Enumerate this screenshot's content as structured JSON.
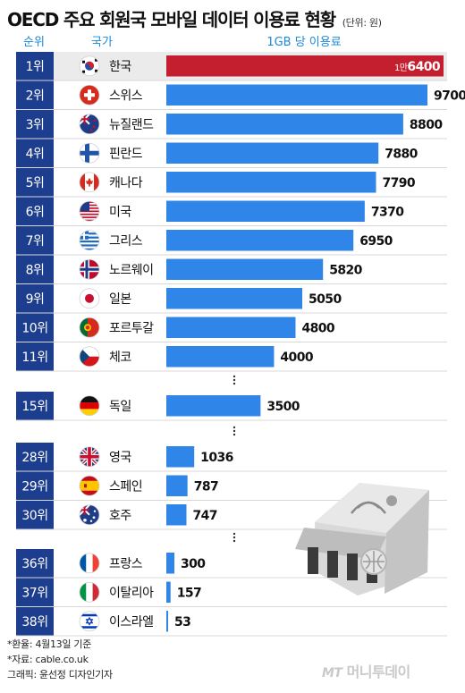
{
  "title": "OECD 주요 회원국 모바일 데이터 이용료 현황",
  "unit_note": "(단위: 원)",
  "headers": {
    "rank": "순위",
    "country": "국가",
    "price": "1GB 당 이용료"
  },
  "chart_data": {
    "type": "bar",
    "orientation": "horizontal",
    "title": "OECD 주요 회원국 모바일 데이터 이용료 현황",
    "value_unit": "원",
    "value_label": "1GB 당 이용료",
    "groups": [
      [
        {
          "rank": "1위",
          "country": "한국",
          "flag": "south-korea-flag",
          "value": 16400,
          "label_prefix": "1만",
          "label_rest": "6400",
          "highlight": true
        },
        {
          "rank": "2위",
          "country": "스위스",
          "flag": "switzerland-flag",
          "value": 9700,
          "label": "9700"
        },
        {
          "rank": "3위",
          "country": "뉴질랜드",
          "flag": "new-zealand-flag",
          "value": 8800,
          "label": "8800"
        },
        {
          "rank": "4위",
          "country": "핀란드",
          "flag": "finland-flag",
          "value": 7880,
          "label": "7880"
        },
        {
          "rank": "5위",
          "country": "캐나다",
          "flag": "canada-flag",
          "value": 7790,
          "label": "7790"
        },
        {
          "rank": "6위",
          "country": "미국",
          "flag": "usa-flag",
          "value": 7370,
          "label": "7370"
        },
        {
          "rank": "7위",
          "country": "그리스",
          "flag": "greece-flag",
          "value": 6950,
          "label": "6950"
        },
        {
          "rank": "8위",
          "country": "노르웨이",
          "flag": "norway-flag",
          "value": 5820,
          "label": "5820"
        },
        {
          "rank": "9위",
          "country": "일본",
          "flag": "japan-flag",
          "value": 5050,
          "label": "5050"
        },
        {
          "rank": "10위",
          "country": "포르투갈",
          "flag": "portugal-flag",
          "value": 4800,
          "label": "4800"
        },
        {
          "rank": "11위",
          "country": "체코",
          "flag": "czech-flag",
          "value": 4000,
          "label": "4000"
        }
      ],
      [
        {
          "rank": "15위",
          "country": "독일",
          "flag": "germany-flag",
          "value": 3500,
          "label": "3500"
        }
      ],
      [
        {
          "rank": "28위",
          "country": "영국",
          "flag": "uk-flag",
          "value": 1036,
          "label": "1036"
        },
        {
          "rank": "29위",
          "country": "스페인",
          "flag": "spain-flag",
          "value": 787,
          "label": "787"
        },
        {
          "rank": "30위",
          "country": "호주",
          "flag": "australia-flag",
          "value": 747,
          "label": "747"
        }
      ],
      [
        {
          "rank": "36위",
          "country": "프랑스",
          "flag": "france-flag",
          "value": 300,
          "label": "300"
        },
        {
          "rank": "37위",
          "country": "이탈리아",
          "flag": "italy-flag",
          "value": 157,
          "label": "157"
        },
        {
          "rank": "38위",
          "country": "이스라엘",
          "flag": "israel-flag",
          "value": 53,
          "label": "53"
        }
      ]
    ],
    "colors": {
      "bar": "#2f86e8",
      "highlight_bar": "#c41f2e",
      "rank_cell": "#1d3d8f",
      "header_text": "#1c8ad8"
    }
  },
  "notes": [
    "*환율: 4월13일 기준",
    "*자료: cable.co.uk",
    "그래픽: 윤선정 디자인기자"
  ],
  "credit": {
    "brand": "MT",
    "name": "머니투데이"
  },
  "illustration": "store-wifi-icon"
}
